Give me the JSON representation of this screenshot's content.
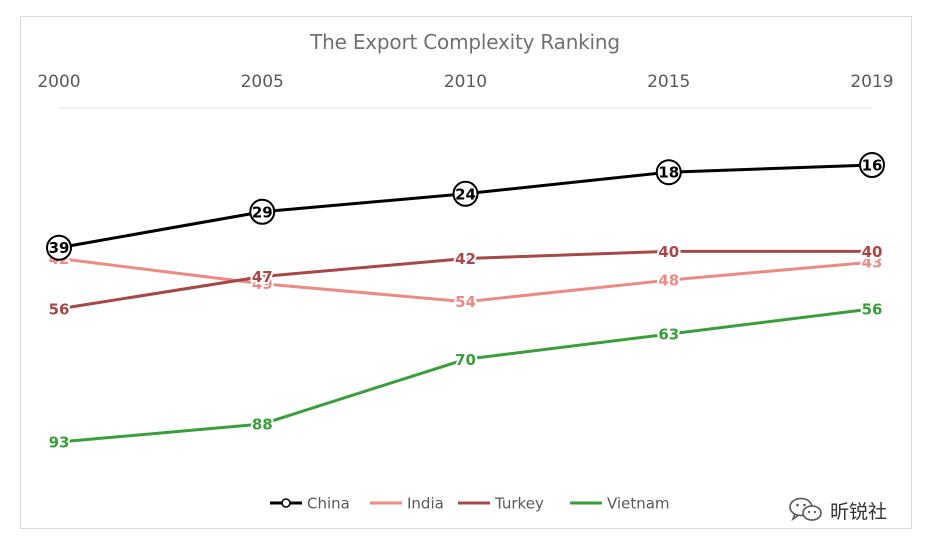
{
  "chart_data": {
    "type": "line",
    "title": "The Export Complexity Ranking",
    "xlabel": "",
    "ylabel": "",
    "x_position": "top",
    "y_direction": "inverted",
    "ylim": [
      10,
      100
    ],
    "grid": false,
    "legend": "bottom-center",
    "categories": [
      "2000",
      "2005",
      "2010",
      "2015",
      "2019"
    ],
    "series": [
      {
        "name": "China",
        "color": "#000000",
        "marker": "circle",
        "values": [
          39,
          29,
          24,
          18,
          16
        ]
      },
      {
        "name": "India",
        "color": "#ee8a86",
        "marker": "none",
        "values": [
          42,
          49,
          54,
          48,
          43
        ]
      },
      {
        "name": "Turkey",
        "color": "#a84747",
        "marker": "none",
        "values": [
          56,
          47,
          42,
          40,
          40
        ]
      },
      {
        "name": "Vietnam",
        "color": "#3a9e3a",
        "marker": "none",
        "values": [
          93,
          88,
          70,
          63,
          56
        ]
      }
    ]
  },
  "watermark": {
    "text": "昕锐社",
    "icon": "wechat-icon"
  }
}
